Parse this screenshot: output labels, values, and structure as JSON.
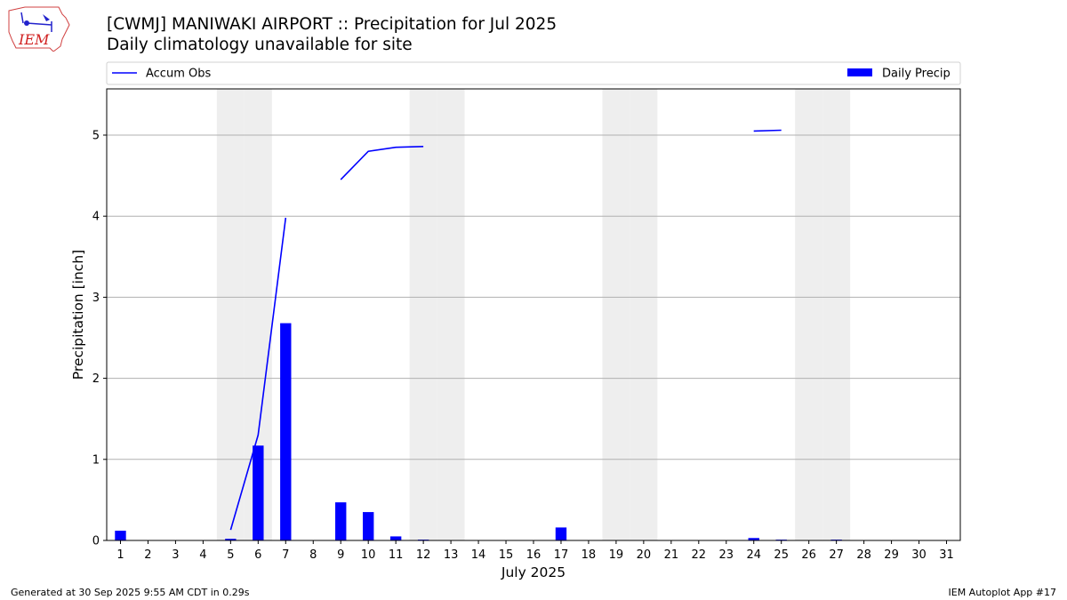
{
  "header": {
    "title": "[CWMJ] MANIWAKI AIRPORT :: Precipitation for Jul 2025",
    "subtitle": "Daily climatology unavailable for site",
    "logo_text": "IEM"
  },
  "footer": {
    "generated": "Generated at 30 Sep 2025 9:55 AM CDT in 0.29s",
    "app": "IEM Autoplot App #17"
  },
  "chart_data": {
    "type": "bar",
    "xlabel": "July 2025",
    "ylabel": "Precipitation [inch]",
    "xlim": [
      0.5,
      31.5
    ],
    "ylim": [
      0,
      5.57
    ],
    "yticks": [
      0,
      1,
      2,
      3,
      4,
      5
    ],
    "categories": [
      "1",
      "2",
      "3",
      "4",
      "5",
      "6",
      "7",
      "8",
      "9",
      "10",
      "11",
      "12",
      "13",
      "14",
      "15",
      "16",
      "17",
      "18",
      "19",
      "20",
      "21",
      "22",
      "23",
      "24",
      "25",
      "26",
      "27",
      "28",
      "29",
      "30",
      "31"
    ],
    "weekend_days": [
      5,
      6,
      12,
      13,
      19,
      20,
      26,
      27
    ],
    "grid": "horizontal",
    "legend": "top",
    "series": [
      {
        "name": "Daily Precip",
        "kind": "bar",
        "color": "#0000ff",
        "values": [
          0.12,
          0,
          0,
          0,
          0.02,
          1.17,
          2.68,
          0,
          0.47,
          0.35,
          0.05,
          0.01,
          0,
          0,
          0,
          0,
          0.16,
          0,
          0,
          0,
          0,
          0,
          0,
          0.03,
          0.01,
          0,
          0.01,
          0,
          0,
          0,
          0
        ]
      },
      {
        "name": "Accum Obs",
        "kind": "line",
        "color": "#0000ff",
        "segments": [
          [
            [
              5,
              0.13
            ],
            [
              6,
              1.3
            ],
            [
              7,
              3.98
            ]
          ],
          [
            [
              9,
              4.45
            ],
            [
              10,
              4.8
            ],
            [
              11,
              4.85
            ],
            [
              12,
              4.86
            ]
          ],
          [
            [
              24,
              5.05
            ],
            [
              25,
              5.06
            ]
          ]
        ]
      }
    ]
  }
}
